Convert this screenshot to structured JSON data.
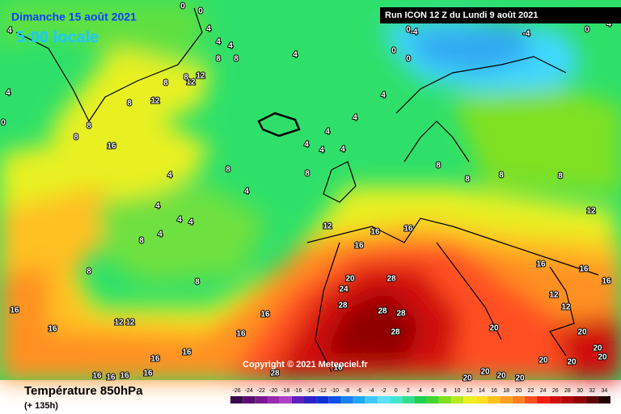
{
  "header": {
    "date": "Dimanche 15 août 2021",
    "time": "5:00 locale",
    "run": "Run ICON 12 Z du Lundi 9 août 2021"
  },
  "copyright": "Copyright © 2021 Meteociel.fr",
  "footer": {
    "title": "Température 850hPa",
    "subtitle": "(+ 135h)"
  },
  "colorbar": {
    "labels": [
      "-26",
      "-24",
      "-22",
      "-20",
      "-18",
      "-16",
      "-14",
      "-12",
      "-10",
      "-8",
      "-6",
      "-4",
      "-2",
      "0",
      "2",
      "4",
      "6",
      "8",
      "10",
      "12",
      "14",
      "16",
      "18",
      "20",
      "22",
      "24",
      "26",
      "28",
      "30",
      "32",
      "34"
    ],
    "colors": [
      "#3a0a4a",
      "#5a1070",
      "#7a1a90",
      "#9a2ab0",
      "#b040c8",
      "#6020c0",
      "#3020c8",
      "#1030d8",
      "#1050e8",
      "#1880f0",
      "#20a8f8",
      "#40c8ff",
      "#60e0ff",
      "#40e8d0",
      "#30e090",
      "#20d050",
      "#40d830",
      "#80e020",
      "#b8e820",
      "#e8f020",
      "#ffe020",
      "#ffc020",
      "#ffa020",
      "#ff8020",
      "#ff5020",
      "#f02010",
      "#d01010",
      "#b00808",
      "#900000",
      "#600000",
      "#200000"
    ]
  },
  "map": {
    "contour_labels": [
      "0",
      "0",
      "4",
      "4",
      "4",
      "4",
      "8",
      "8",
      "4",
      "8",
      "12",
      "12",
      "8",
      "12",
      "8",
      "4",
      "0",
      "8",
      "8",
      "16",
      "4",
      "4",
      "4",
      "4",
      "4",
      "4",
      "0",
      "-4",
      "0",
      "0",
      "-4",
      "0",
      "4",
      "8",
      "8",
      "4",
      "4",
      "4",
      "4",
      "4",
      "4",
      "8",
      "8",
      "8",
      "12",
      "16",
      "16",
      "16",
      "8",
      "8",
      "8",
      "8",
      "12",
      "16",
      "16",
      "16",
      "12",
      "12",
      "20",
      "24",
      "28",
      "28",
      "28",
      "28",
      "28",
      "20",
      "20",
      "20",
      "20",
      "20",
      "20",
      "20",
      "20",
      "20",
      "20",
      "28",
      "16",
      "16",
      "16",
      "16",
      "12",
      "12",
      "16",
      "16",
      "16",
      "16",
      "16",
      "16",
      "16"
    ]
  }
}
